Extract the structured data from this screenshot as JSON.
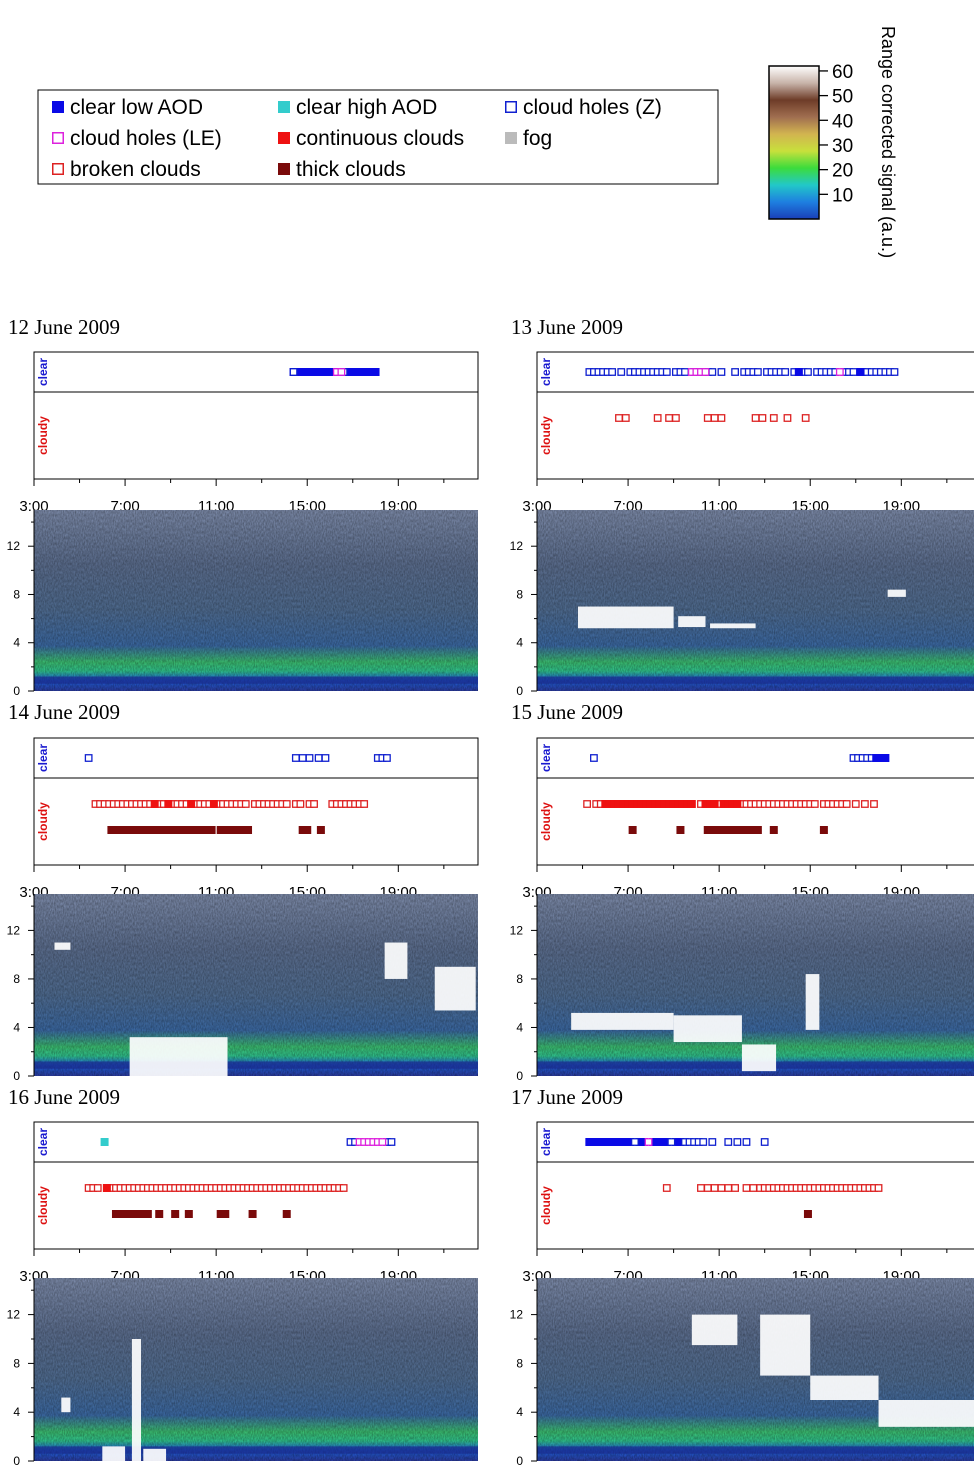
{
  "colors": {
    "clear_low_aod": "#0a0ae6",
    "clear_high_aod": "#33cccc",
    "cloud_holes_z": "#1020d0",
    "cloud_holes_le": "#dd22dd",
    "continuous_clouds": "#ee1111",
    "fog": "#bbbbbb",
    "broken_clouds": "#dd2222",
    "thick_clouds": "#7a0a0a",
    "clear_label": "#1a1ad0",
    "cloudy_label": "#dd1111"
  },
  "legend": {
    "items": [
      {
        "label": "clear low AOD",
        "style": "filled",
        "color": "#0a0ae6"
      },
      {
        "label": "clear high AOD",
        "style": "filled",
        "color": "#33cccc"
      },
      {
        "label": "cloud holes (Z)",
        "style": "open",
        "color": "#1020d0"
      },
      {
        "label": "cloud holes (LE)",
        "style": "open",
        "color": "#dd22dd"
      },
      {
        "label": "continuous clouds",
        "style": "filled",
        "color": "#ee1111"
      },
      {
        "label": "fog",
        "style": "filled",
        "color": "#bbbbbb"
      },
      {
        "label": "broken clouds",
        "style": "open",
        "color": "#dd2222"
      },
      {
        "label": "thick clouds",
        "style": "filled",
        "color": "#7a0a0a"
      }
    ]
  },
  "colorbar": {
    "label": "Range corrected signal (a.u.)",
    "ticks": [
      "60",
      "50",
      "40",
      "30",
      "20",
      "10"
    ],
    "tick_values": [
      60,
      50,
      40,
      30,
      20,
      10
    ],
    "range": [
      0,
      62
    ],
    "stops": [
      "#1a3fb8",
      "#1e7fe0",
      "#22c8c8",
      "#3cdc3c",
      "#c8e03c",
      "#d2b450",
      "#a06e50",
      "#6e3c28",
      "#c8b4aa",
      "#ffffff"
    ]
  },
  "chart_data": [
    {
      "type": "scatter",
      "title": "12 June 2009",
      "x_ticks": [
        "3:00",
        "7:00",
        "11:00",
        "15:00",
        "19:00"
      ],
      "xlim": [
        3,
        22.5
      ],
      "row_labels": [
        "clear",
        "cloudy"
      ],
      "series": [
        {
          "name": "clear low AOD",
          "row": "clear",
          "values": [
            14.4,
            14.6,
            14.8,
            15.0,
            15.2,
            15.4,
            15.6,
            15.8,
            16.0,
            16.2,
            16.8,
            17.0,
            17.2,
            17.4,
            17.6,
            17.8,
            18.0
          ]
        },
        {
          "name": "cloud holes (Z)",
          "row": "clear",
          "values": [
            14.4,
            16.6
          ]
        },
        {
          "name": "cloud holes (LE)",
          "row": "clear",
          "values": [
            16.3,
            16.5
          ]
        }
      ],
      "profile": {
        "y_ticks": [
          "0",
          "4",
          "8",
          "12"
        ],
        "ylim": [
          0,
          15
        ],
        "features": []
      }
    },
    {
      "type": "scatter",
      "title": "13 June 2009",
      "x_ticks": [
        "3:00",
        "7:00",
        "11:00",
        "15:00",
        "19:00"
      ],
      "xlim": [
        3,
        22.5
      ],
      "row_labels": [
        "clear",
        "cloudy"
      ],
      "series": [
        {
          "name": "cloud holes (Z)",
          "row": "clear",
          "values": [
            5.3,
            5.5,
            5.7,
            5.9,
            6.1,
            6.3,
            6.7,
            7.1,
            7.3,
            7.5,
            7.7,
            7.9,
            8.1,
            8.3,
            8.5,
            8.7,
            9.1,
            9.3,
            9.5,
            9.9,
            10.1,
            10.3,
            10.5,
            10.7,
            11.1,
            11.7,
            12.1,
            12.3,
            12.5,
            12.7,
            13.1,
            13.3,
            13.5,
            13.7,
            13.9,
            14.3,
            14.5,
            14.7,
            14.9,
            15.3,
            15.5,
            15.7,
            15.9,
            16.1,
            16.5,
            16.7,
            16.9,
            17.3,
            17.5,
            17.7,
            17.9,
            18.1,
            18.3,
            18.5,
            18.7
          ]
        },
        {
          "name": "cloud holes (LE)",
          "row": "clear",
          "values": [
            9.8,
            10.0,
            10.2,
            10.4,
            16.3
          ]
        },
        {
          "name": "clear low AOD",
          "row": "clear",
          "values": [
            14.5,
            17.2
          ]
        },
        {
          "name": "broken clouds",
          "row": "cloudy",
          "values": [
            6.6,
            6.9,
            8.3,
            8.8,
            9.1,
            10.5,
            10.8,
            11.1,
            12.6,
            12.9,
            13.4,
            14.0,
            14.8
          ]
        }
      ],
      "profile": {
        "y_ticks": [
          "0",
          "4",
          "8",
          "12"
        ],
        "ylim": [
          0,
          15
        ],
        "features": [
          [
            4.8,
            9.0,
            5.2,
            7.0
          ],
          [
            9.2,
            10.4,
            5.3,
            6.2
          ],
          [
            10.6,
            12.6,
            5.2,
            5.6
          ],
          [
            18.4,
            19.2,
            7.8,
            8.4
          ]
        ]
      }
    },
    {
      "type": "scatter",
      "title": "14 June 2009",
      "x_ticks": [
        "3:00",
        "7:00",
        "11:00",
        "15:00",
        "19:00"
      ],
      "xlim": [
        3,
        22.5
      ],
      "row_labels": [
        "clear",
        "cloudy"
      ],
      "series": [
        {
          "name": "cloud holes (Z)",
          "row": "clear",
          "values": [
            5.4,
            14.5,
            14.8,
            15.1,
            15.5,
            15.8,
            18.1,
            18.3,
            18.5
          ]
        },
        {
          "name": "broken clouds",
          "row": "cloudy",
          "values": [
            5.7,
            5.9,
            6.1,
            6.3,
            6.5,
            6.7,
            6.9,
            7.1,
            7.3,
            7.5,
            7.7,
            7.9,
            8.1,
            8.5,
            8.7,
            9.1,
            9.3,
            9.5,
            9.7,
            10.1,
            10.3,
            10.5,
            10.7,
            11.1,
            11.3,
            11.5,
            11.7,
            11.9,
            12.1,
            12.3,
            12.7,
            12.9,
            13.1,
            13.3,
            13.5,
            13.7,
            13.9,
            14.1,
            14.5,
            14.7,
            15.1,
            15.3,
            16.1,
            16.3,
            16.5,
            16.7,
            16.9,
            17.1,
            17.3,
            17.5
          ]
        },
        {
          "name": "continuous clouds",
          "row": "cloudy",
          "values": [
            8.3,
            8.9,
            9.9,
            10.9
          ]
        },
        {
          "name": "thick clouds",
          "row": "cloudy",
          "values": [
            6.4,
            6.6,
            6.8,
            7.0,
            7.2,
            7.4,
            7.6,
            7.8,
            8.0,
            8.2,
            8.4,
            8.6,
            8.8,
            9.0,
            9.2,
            9.4,
            9.6,
            9.8,
            10.0,
            10.2,
            10.4,
            10.6,
            10.8,
            11.2,
            11.4,
            11.6,
            11.8,
            12.0,
            12.2,
            12.4,
            14.8,
            15.0,
            15.6
          ]
        }
      ],
      "profile": {
        "y_ticks": [
          "0",
          "4",
          "8",
          "12"
        ],
        "ylim": [
          0,
          15
        ],
        "features": [
          [
            7.2,
            11.5,
            0,
            3.2
          ],
          [
            3.9,
            4.6,
            10.4,
            11.0
          ],
          [
            18.4,
            19.4,
            8.0,
            11.0
          ],
          [
            20.6,
            22.4,
            5.4,
            9.0
          ]
        ]
      }
    },
    {
      "type": "scatter",
      "title": "15 June 2009",
      "x_ticks": [
        "3:00",
        "7:00",
        "11:00",
        "15:00",
        "19:00"
      ],
      "xlim": [
        3,
        22.5
      ],
      "row_labels": [
        "clear",
        "cloudy"
      ],
      "series": [
        {
          "name": "cloud holes (Z)",
          "row": "clear",
          "values": [
            5.5,
            16.9,
            17.1,
            17.3,
            17.5,
            17.7
          ]
        },
        {
          "name": "clear low AOD",
          "row": "clear",
          "values": [
            17.9,
            18.1,
            18.3
          ]
        },
        {
          "name": "broken clouds",
          "row": "cloudy",
          "values": [
            5.2,
            5.6,
            5.8,
            10.2,
            11.0,
            12.0,
            12.2,
            12.4,
            12.6,
            12.8,
            13.0,
            13.2,
            13.4,
            13.6,
            13.8,
            14.0,
            14.2,
            14.4,
            14.6,
            14.8,
            15.0,
            15.2,
            15.6,
            15.8,
            16.0,
            16.2,
            16.4,
            16.6,
            17.0,
            17.4,
            17.8
          ]
        },
        {
          "name": "continuous clouds",
          "row": "cloudy",
          "values": [
            6.0,
            6.2,
            6.4,
            6.6,
            6.8,
            7.0,
            7.2,
            7.4,
            7.6,
            7.8,
            8.0,
            8.2,
            8.4,
            8.6,
            8.8,
            9.0,
            9.2,
            9.4,
            9.6,
            9.8,
            10.4,
            10.6,
            10.8,
            11.2,
            11.4,
            11.6,
            11.8
          ]
        },
        {
          "name": "thick clouds",
          "row": "cloudy",
          "values": [
            7.2,
            9.3,
            10.5,
            10.7,
            10.9,
            11.1,
            11.3,
            11.5,
            11.7,
            11.9,
            12.1,
            12.3,
            12.5,
            12.7,
            13.4,
            15.6
          ]
        }
      ],
      "profile": {
        "y_ticks": [
          "0",
          "4",
          "8",
          "12"
        ],
        "ylim": [
          0,
          15
        ],
        "features": [
          [
            4.5,
            9.0,
            3.8,
            5.2
          ],
          [
            9.0,
            12.0,
            2.8,
            5.0
          ],
          [
            12.0,
            13.5,
            0.4,
            2.6
          ],
          [
            14.8,
            15.4,
            3.8,
            8.4
          ]
        ]
      }
    },
    {
      "type": "scatter",
      "title": "16 June 2009",
      "x_ticks": [
        "3:00",
        "7:00",
        "11:00",
        "15:00",
        "19:00"
      ],
      "xlim": [
        3,
        22.5
      ],
      "row_labels": [
        "clear",
        "cloudy"
      ],
      "series": [
        {
          "name": "clear high AOD",
          "row": "clear",
          "values": [
            6.1
          ]
        },
        {
          "name": "cloud holes (Z)",
          "row": "clear",
          "values": [
            16.9,
            17.1,
            18.5,
            18.7
          ]
        },
        {
          "name": "cloud holes (LE)",
          "row": "clear",
          "values": [
            17.3,
            17.5,
            17.7,
            17.9,
            18.1,
            18.3
          ]
        },
        {
          "name": "broken clouds",
          "row": "cloudy",
          "values": [
            5.4,
            5.6,
            5.8,
            6.4,
            6.6,
            6.8,
            7.0,
            7.2,
            7.4,
            7.6,
            7.8,
            8.0,
            8.2,
            8.4,
            8.6,
            8.8,
            9.0,
            9.2,
            9.4,
            9.6,
            9.8,
            10.0,
            10.2,
            10.4,
            10.6,
            10.8,
            11.0,
            11.2,
            11.4,
            11.6,
            11.8,
            12.0,
            12.2,
            12.4,
            12.6,
            12.8,
            13.0,
            13.2,
            13.4,
            13.6,
            13.8,
            14.0,
            14.2,
            14.4,
            14.6,
            14.8,
            15.0,
            15.2,
            15.4,
            15.6,
            15.8,
            16.0,
            16.2,
            16.4,
            16.6
          ]
        },
        {
          "name": "continuous clouds",
          "row": "cloudy",
          "values": [
            6.2
          ]
        },
        {
          "name": "thick clouds",
          "row": "cloudy",
          "values": [
            6.6,
            6.8,
            7.0,
            7.2,
            7.4,
            7.6,
            7.8,
            8.0,
            8.5,
            9.2,
            9.8,
            11.2,
            11.4,
            12.6,
            14.1
          ]
        }
      ],
      "profile": {
        "y_ticks": [
          "0",
          "4",
          "8",
          "12"
        ],
        "ylim": [
          0,
          15
        ],
        "features": [
          [
            7.3,
            7.7,
            0,
            10.0
          ],
          [
            6.0,
            7.0,
            0,
            1.2
          ],
          [
            7.8,
            8.8,
            0,
            1.0
          ],
          [
            4.2,
            4.6,
            4.0,
            5.2
          ]
        ]
      }
    },
    {
      "type": "scatter",
      "title": "17 June 2009",
      "x_ticks": [
        "3:00",
        "7:00",
        "11:00",
        "15:00",
        "19:00"
      ],
      "xlim": [
        3,
        22.5
      ],
      "row_labels": [
        "clear",
        "cloudy"
      ],
      "series": [
        {
          "name": "clear low AOD",
          "row": "clear",
          "values": [
            5.3,
            5.5,
            5.7,
            5.9,
            6.1,
            6.3,
            6.5,
            6.7,
            6.9,
            7.1,
            7.5,
            7.7,
            8.1,
            8.3,
            8.5,
            8.7,
            9.1,
            9.3
          ]
        },
        {
          "name": "cloud holes (Z)",
          "row": "clear",
          "values": [
            7.3,
            8.9,
            9.5,
            9.7,
            9.9,
            10.1,
            10.3,
            10.7,
            11.4,
            11.8,
            12.2,
            13.0
          ]
        },
        {
          "name": "cloud holes (LE)",
          "row": "clear",
          "values": [
            7.9
          ]
        },
        {
          "name": "broken clouds",
          "row": "cloudy",
          "values": [
            8.7,
            10.2,
            10.5,
            10.8,
            11.1,
            11.4,
            11.7,
            12.2,
            12.5,
            12.8,
            13.0,
            13.2,
            13.4,
            13.6,
            13.8,
            14.0,
            14.2,
            14.4,
            14.6,
            14.8,
            15.0,
            15.2,
            15.4,
            15.6,
            15.8,
            16.0,
            16.2,
            16.4,
            16.6,
            16.8,
            17.0,
            17.2,
            17.4,
            17.6,
            17.8,
            18.0
          ]
        },
        {
          "name": "thick clouds",
          "row": "cloudy",
          "values": [
            14.9
          ]
        }
      ],
      "profile": {
        "y_ticks": [
          "0",
          "4",
          "8",
          "12"
        ],
        "ylim": [
          0,
          15
        ],
        "features": [
          [
            12.8,
            15.0,
            7.0,
            12.0
          ],
          [
            15.0,
            18.0,
            5.0,
            7.0
          ],
          [
            18.0,
            22.5,
            2.8,
            5.0
          ],
          [
            9.8,
            11.8,
            9.5,
            12.0
          ]
        ]
      }
    }
  ]
}
